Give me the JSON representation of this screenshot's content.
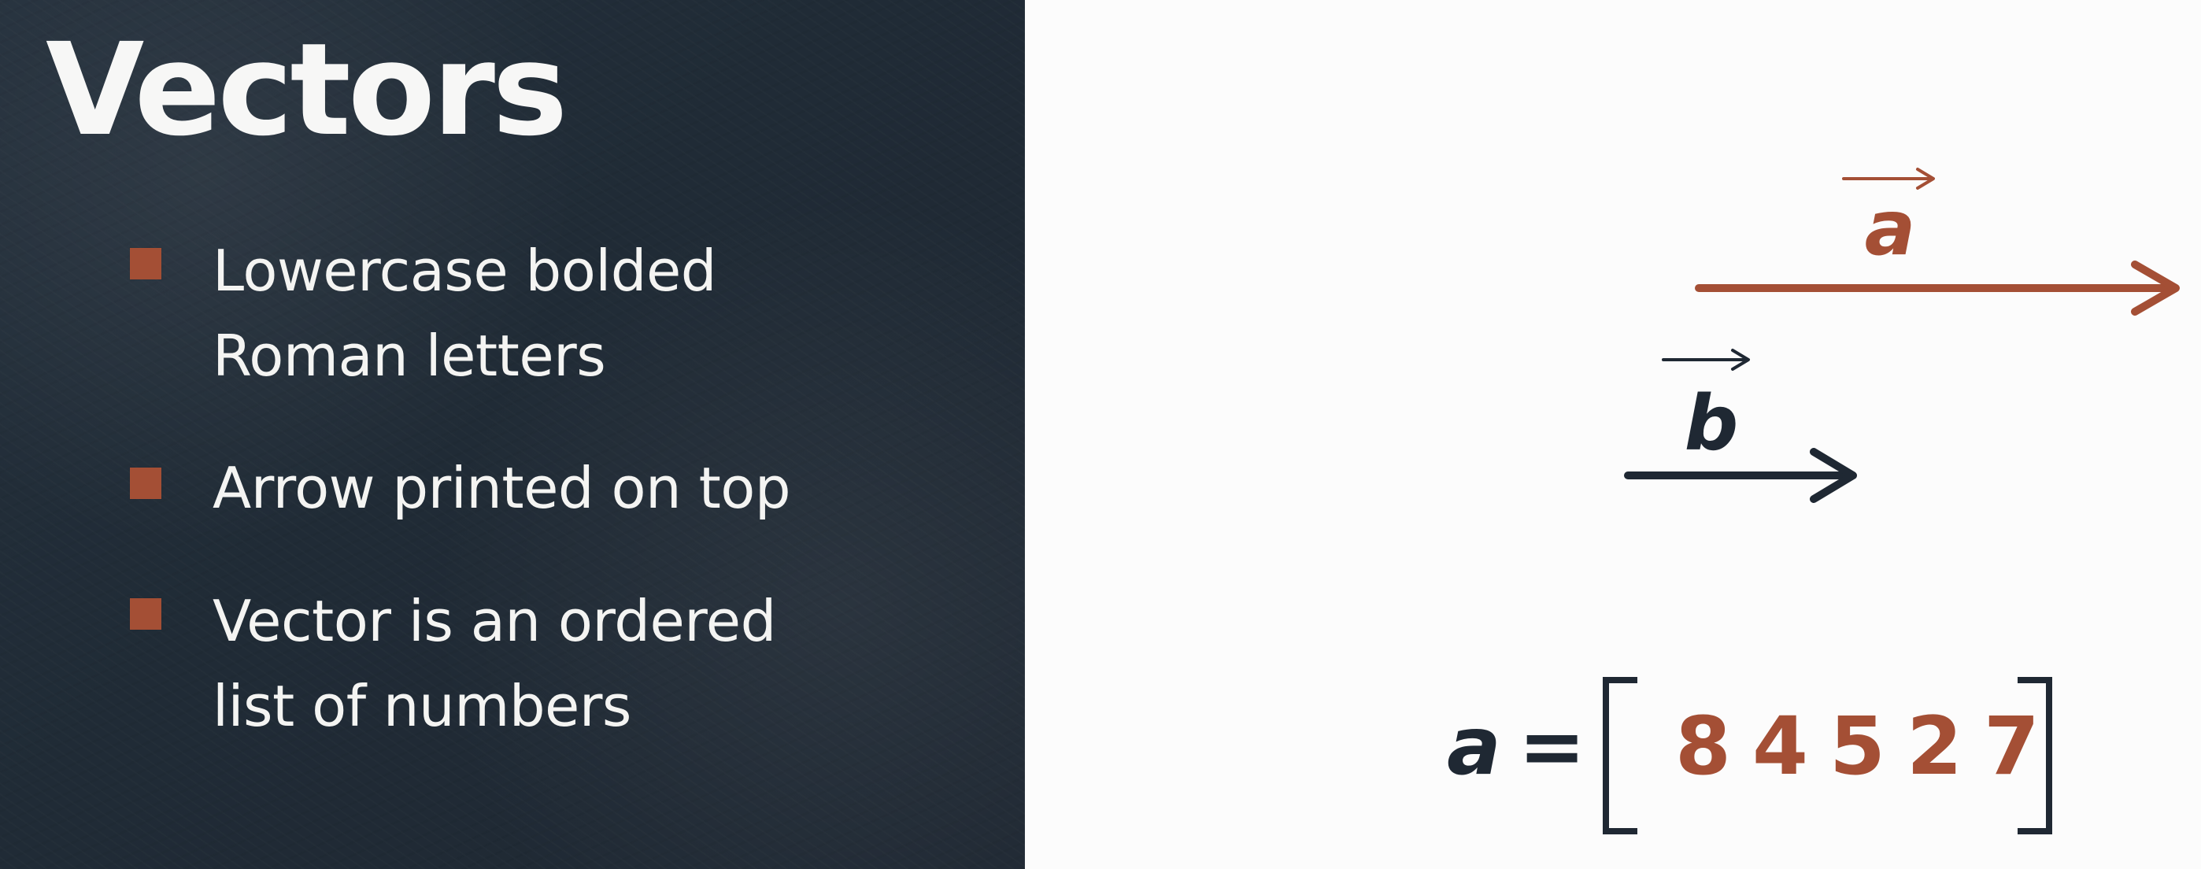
{
  "slide": {
    "title": "Vectors",
    "bullets": [
      [
        "Lowercase bolded",
        "Roman letters"
      ],
      [
        "Arrow printed on top"
      ],
      [
        "Vector is an ordered",
        "list of numbers"
      ]
    ]
  },
  "diagram": {
    "vector_a_label": "a",
    "vector_b_label": "b",
    "equation_label": "a",
    "equation_equals": "=",
    "values": [
      "8",
      "4",
      "5",
      "2",
      "7"
    ]
  },
  "colors": {
    "background": "#fcfcfc",
    "panel": "#202b36",
    "title": "#f7f7f6",
    "text": "#f4f4f2",
    "accent": "#a44f35",
    "dark": "#1f2833"
  }
}
